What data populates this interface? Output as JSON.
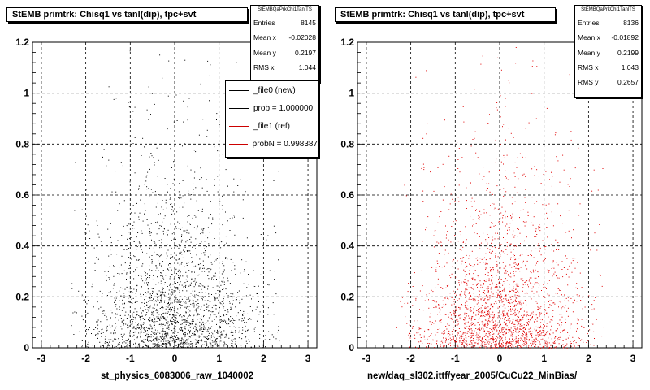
{
  "panels": [
    {
      "title": "StEMB primtrk: Chisq1 vs tanl(dip), tpc+svt",
      "stats": {
        "name": "StEMBQaPrkChi1TanlTS",
        "rows": [
          {
            "label": "Entries",
            "value": "8145"
          },
          {
            "label": "Mean x",
            "value": "-0.02028"
          },
          {
            "label": "Mean y",
            "value": "0.2197"
          },
          {
            "label": "RMS x",
            "value": "1.044"
          }
        ]
      },
      "legend": [
        {
          "label": "_file0 (new)",
          "color": "#000000"
        },
        {
          "label": "prob = 1.000000",
          "color": "#000000"
        },
        {
          "label": "_file1 (ref)",
          "color": "#cc0000"
        },
        {
          "label": "probN = 0.998387",
          "color": "#cc0000"
        }
      ],
      "xaxis_title": "st_physics_6083006_raw_1040002"
    },
    {
      "title": "StEMB primtrk: Chisq1 vs tanl(dip), tpc+svt",
      "stats": {
        "name": "StEMBQaPrkChi1TanlTS",
        "rows": [
          {
            "label": "Entries",
            "value": "8136"
          },
          {
            "label": "Mean x",
            "value": "-0.01892"
          },
          {
            "label": "Mean y",
            "value": "0.2199"
          },
          {
            "label": "RMS x",
            "value": "1.043"
          },
          {
            "label": "RMS y",
            "value": "0.2657"
          }
        ]
      },
      "xaxis_title": "new/daq_sl302.ittf/year_2005/CuCu22_MinBias/"
    }
  ],
  "chart_data": [
    {
      "type": "scatter",
      "title": "StEMB primtrk: Chisq1 vs tanl(dip), tpc+svt",
      "xlabel": "st_physics_6083006_raw_1040002",
      "ylabel": "",
      "xlim": [
        -3.2,
        3.2
      ],
      "ylim": [
        0,
        1.2
      ],
      "x_ticks": [
        "-3",
        "-2",
        "-1",
        "0",
        "1",
        "2",
        "3"
      ],
      "y_ticks": [
        "0",
        "0.2",
        "0.4",
        "0.6",
        "0.8",
        "1",
        "1.2"
      ],
      "grid": true,
      "color": "#000000",
      "entries": 8145,
      "mean_x": -0.02028,
      "mean_y": 0.2197,
      "rms_x": 1.044,
      "point_count": 2300
    },
    {
      "type": "scatter",
      "title": "StEMB primtrk: Chisq1 vs tanl(dip), tpc+svt",
      "xlabel": "new/daq_sl302.ittf/year_2005/CuCu22_MinBias/",
      "ylabel": "",
      "xlim": [
        -3.2,
        3.2
      ],
      "ylim": [
        0,
        1.2
      ],
      "x_ticks": [
        "-3",
        "-2",
        "-1",
        "0",
        "1",
        "2",
        "3"
      ],
      "y_ticks": [
        "0",
        "0.2",
        "0.4",
        "0.6",
        "0.8",
        "1",
        "1.2"
      ],
      "grid": true,
      "color": "#e00000",
      "entries": 8136,
      "mean_x": -0.01892,
      "mean_y": 0.2199,
      "rms_x": 1.043,
      "rms_y": 0.2657,
      "point_count": 2300
    }
  ]
}
